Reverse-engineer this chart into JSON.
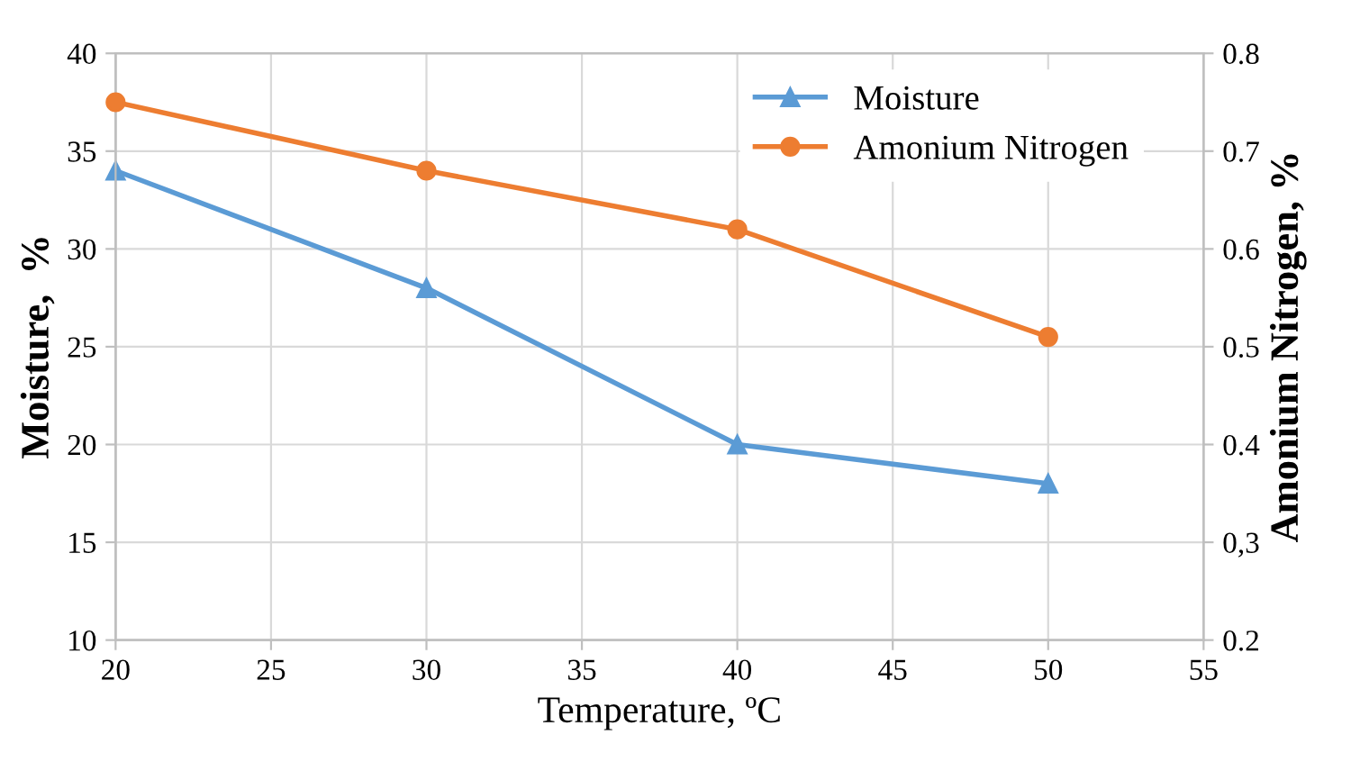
{
  "chart_data": {
    "type": "line",
    "xlabel": "Temperature, ºC",
    "ylabel": "Moisture,  %",
    "y2label": "Amonium Nitrogen, %",
    "x": [
      20,
      30,
      40,
      50
    ],
    "series": [
      {
        "name": "Moisture",
        "color": "#5b9bd5",
        "marker": "triangle",
        "values": [
          34,
          28,
          20,
          18
        ]
      },
      {
        "name": "Amonium Nitrogen",
        "color": "#ed7d31",
        "marker": "circle",
        "axis": "y2",
        "values": [
          0.75,
          0.68,
          0.62,
          0.51
        ]
      }
    ],
    "xlim": [
      20,
      55
    ],
    "xticks": [
      20,
      25,
      30,
      35,
      40,
      45,
      50,
      55
    ],
    "ylim": [
      10,
      40
    ],
    "yticks": [
      10,
      15,
      20,
      25,
      30,
      35,
      40
    ],
    "y2lim": [
      0.2,
      0.8
    ],
    "y2ticks": [
      {
        "value": 0.2,
        "label": "0.2"
      },
      {
        "value": 0.3,
        "label": "0,3"
      },
      {
        "value": 0.4,
        "label": "0.4"
      },
      {
        "value": 0.5,
        "label": "0.5"
      },
      {
        "value": 0.6,
        "label": "0.6"
      },
      {
        "value": 0.7,
        "label": "0.7"
      },
      {
        "value": 0.8,
        "label": "0.8"
      }
    ],
    "grid": true,
    "legend": "top right",
    "line_style": "solid"
  }
}
